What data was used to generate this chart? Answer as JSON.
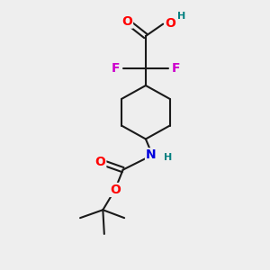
{
  "bg_color": "#eeeeee",
  "bond_color": "#1a1a1a",
  "bond_width": 1.5,
  "atom_colors": {
    "O": "#ff0000",
    "F": "#cc00cc",
    "N": "#0000dd",
    "H_O": "#008080",
    "H_N": "#008080",
    "C": "#1a1a1a"
  },
  "font_size": 10,
  "small_font_size": 8
}
